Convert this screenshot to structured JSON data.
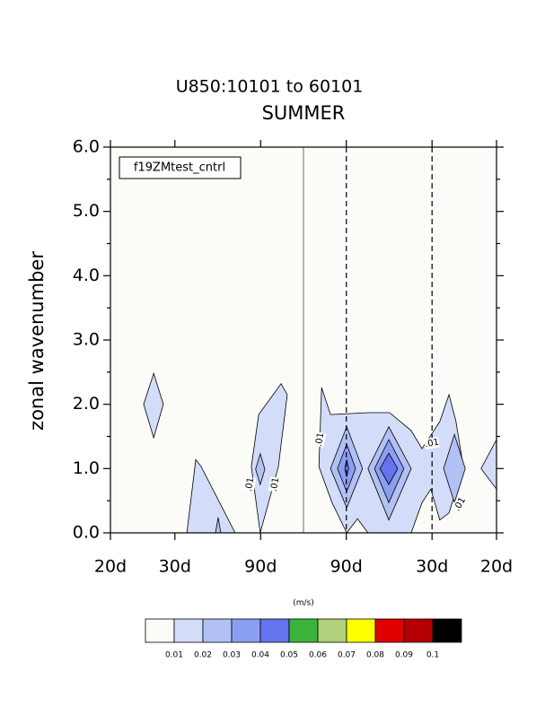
{
  "chart_data": {
    "type": "contour",
    "title": "U850:10101 to 60101",
    "subtitle": "SUMMER",
    "ylabel": "zonal wavenumber",
    "legend_text": "f19ZMtest_cntrl",
    "units": "(m/s)",
    "xlim": [
      -0.05,
      0.05
    ],
    "ylim": [
      0,
      6
    ],
    "xticks": [
      {
        "value": -0.05,
        "label": "20d"
      },
      {
        "value": -0.0333,
        "label": "30d"
      },
      {
        "value": -0.0111,
        "label": "90d"
      },
      {
        "value": 0.0111,
        "label": "90d"
      },
      {
        "value": 0.0333,
        "label": "30d"
      },
      {
        "value": 0.05,
        "label": "20d"
      }
    ],
    "yticks": [
      {
        "value": 0,
        "label": "0.0"
      },
      {
        "value": 1,
        "label": "1.0"
      },
      {
        "value": 2,
        "label": "2.0"
      },
      {
        "value": 3,
        "label": "3.0"
      },
      {
        "value": 4,
        "label": "4.0"
      },
      {
        "value": 5,
        "label": "5.0"
      },
      {
        "value": 6,
        "label": "6.0"
      }
    ],
    "levels": [
      0.01,
      0.02,
      0.03,
      0.04,
      0.05,
      0.06,
      0.07,
      0.08,
      0.09,
      0.1
    ],
    "colors": [
      "#fbfbf8",
      "#d3dcf8",
      "#b2c1f5",
      "#8b9ff2",
      "#6474ee",
      "#3cb43c",
      "#b0d07c",
      "#ffff00",
      "#e00000",
      "#b40000",
      "#000000"
    ],
    "regions": [
      {
        "level": 0.01,
        "x": [
          -0.0388,
          -0.0363,
          -0.0388,
          -0.0414
        ],
        "y": [
          2.48,
          2.0,
          1.48,
          2.0
        ]
      },
      {
        "level": 0.01,
        "x": [
          -0.0302,
          -0.0279,
          -0.0265,
          -0.0177
        ],
        "y": [
          0,
          1.14,
          1.03,
          0
        ]
      },
      {
        "level": 0.02,
        "x": [
          -0.0228,
          -0.0221,
          -0.0214
        ],
        "y": [
          0,
          0.24,
          0
        ]
      },
      {
        "level": 0.01,
        "x": [
          -0.0112,
          -0.0135,
          -0.0116,
          -0.0058,
          -0.0042,
          -0.0065,
          -0.0112
        ],
        "y": [
          0,
          1.03,
          1.84,
          2.32,
          2.15,
          1.03,
          0
        ]
      },
      {
        "level": 0.02,
        "x": [
          -0.0112,
          -0.01,
          -0.0112,
          -0.0124
        ],
        "y": [
          1.23,
          0.99,
          0.75,
          0.99
        ]
      },
      {
        "level": 0.01,
        "x": [
          0.004,
          0.0047,
          0.007,
          0.0167,
          0.0223,
          0.0279,
          0.0307,
          0.033,
          0.0353,
          0.0377,
          0.0395,
          0.0414,
          0.0377,
          0.0353,
          0.033,
          0.0307,
          0.0279,
          0.0167,
          0.014,
          0.0112,
          0.0074
        ],
        "y": [
          1.03,
          2.26,
          1.84,
          1.87,
          1.87,
          1.59,
          1.31,
          1.52,
          1.73,
          2.15,
          1.73,
          1.03,
          0.31,
          0.2,
          0.68,
          0.47,
          0,
          0,
          0.22,
          0,
          0.47
        ]
      },
      {
        "level": 0.02,
        "x": [
          0.0112,
          0.0153,
          0.0112,
          0.007
        ],
        "y": [
          1.65,
          1.0,
          0.39,
          1.0
        ]
      },
      {
        "level": 0.03,
        "x": [
          0.0112,
          0.0135,
          0.0112,
          0.0088
        ],
        "y": [
          1.38,
          1.0,
          0.64,
          1.0
        ]
      },
      {
        "level": 0.04,
        "x": [
          0.0112,
          0.0117,
          0.0112,
          0.0107
        ],
        "y": [
          1.14,
          1.0,
          0.87,
          1.0
        ]
      },
      {
        "level": 0.02,
        "x": [
          0.0221,
          0.0279,
          0.0221,
          0.0167
        ],
        "y": [
          1.65,
          1.0,
          0.2,
          1.0
        ]
      },
      {
        "level": 0.03,
        "x": [
          0.0221,
          0.026,
          0.0221,
          0.0184
        ],
        "y": [
          1.45,
          1.0,
          0.47,
          1.0
        ]
      },
      {
        "level": 0.04,
        "x": [
          0.0221,
          0.0244,
          0.0221,
          0.0198
        ],
        "y": [
          1.24,
          1.0,
          0.75,
          1.0
        ]
      },
      {
        "level": 0.02,
        "x": [
          0.0391,
          0.0419,
          0.0391,
          0.0363
        ],
        "y": [
          1.53,
          1.0,
          0.47,
          1.0
        ]
      },
      {
        "level": 0.01,
        "x": [
          0.05,
          0.046,
          0.05
        ],
        "y": [
          1.45,
          1.0,
          0.68
        ]
      }
    ],
    "contour_labels": [
      ".01",
      ".01",
      ".01",
      ".01",
      ".01"
    ]
  }
}
